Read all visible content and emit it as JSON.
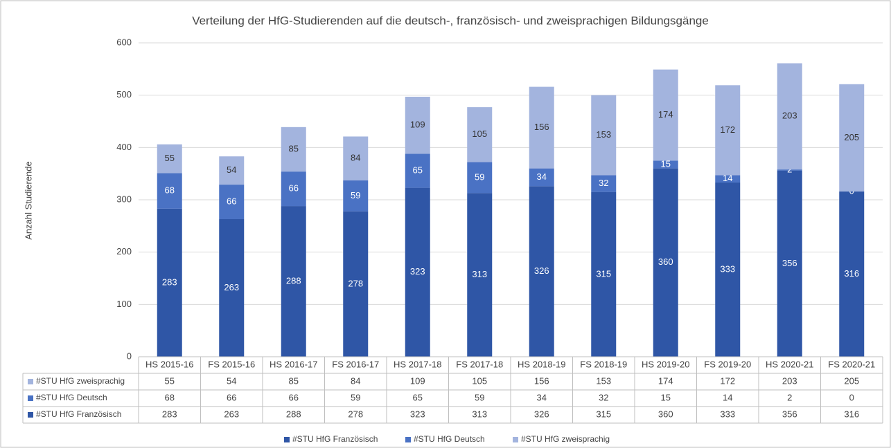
{
  "chart_data": {
    "type": "stacked_bar",
    "title": "Verteilung der HfG-Studierenden auf die deutsch-, französisch- und zweisprachigen Bildungsgänge",
    "y_label": "Anzahl Studierende",
    "categories": [
      "HS 2015-16",
      "FS 2015-16",
      "HS 2016-17",
      "FS 2016-17",
      "HS 2017-18",
      "FS 2017-18",
      "HS 2018-19",
      "FS 2018-19",
      "HS 2019-20",
      "FS 2019-20",
      "HS 2020-21",
      "FS 2020-21"
    ],
    "series": [
      {
        "name": "#STU HfG Französisch",
        "color": "#2f56a6",
        "values": [
          283,
          263,
          288,
          278,
          323,
          313,
          326,
          315,
          360,
          333,
          356,
          316
        ]
      },
      {
        "name": "#STU HfG Deutsch",
        "color": "#4a72c4",
        "values": [
          68,
          66,
          66,
          59,
          65,
          59,
          34,
          32,
          15,
          14,
          2,
          0
        ]
      },
      {
        "name": "#STU HfG zweisprachig",
        "color": "#a3b4de",
        "values": [
          55,
          54,
          85,
          84,
          109,
          105,
          156,
          153,
          174,
          172,
          203,
          205
        ]
      }
    ],
    "ylim": [
      0,
      600
    ],
    "yticks": [
      0,
      100,
      200,
      300,
      400,
      500,
      600
    ],
    "grid": true
  }
}
